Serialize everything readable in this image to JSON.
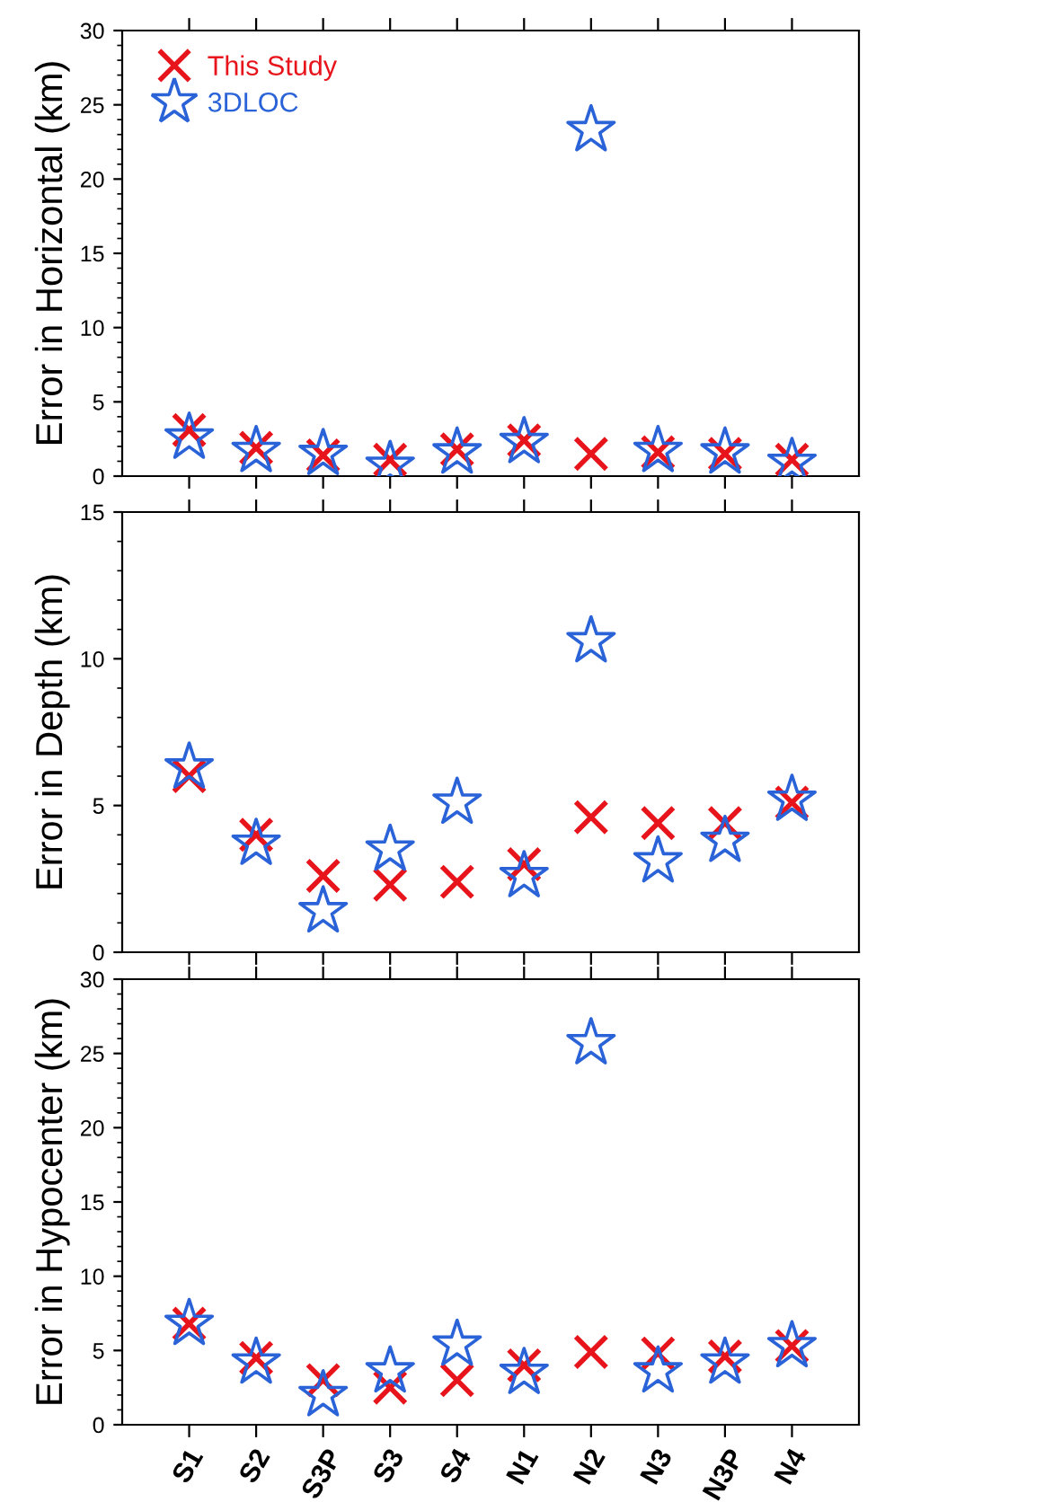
{
  "chart_data": [
    {
      "type": "scatter",
      "ylabel": "Error in Horizontal (km)",
      "categories": [
        null,
        null,
        null,
        null,
        null,
        null,
        null,
        null,
        null,
        null
      ],
      "ylim": [
        0,
        30
      ],
      "yticks": [
        0,
        5,
        10,
        15,
        20,
        25,
        30
      ],
      "tick_labels": "y",
      "legend": "top left",
      "grid": false,
      "series": [
        {
          "name": "This Study",
          "color": "#e8141c",
          "marker": "cross",
          "values": [
            3.1,
            1.9,
            1.4,
            1.1,
            1.8,
            2.4,
            1.5,
            1.6,
            1.5,
            1.1
          ]
        },
        {
          "name": "3DLOC",
          "color": "#2a62d8",
          "marker": "star",
          "values": [
            2.6,
            1.7,
            1.5,
            0.7,
            1.6,
            2.3,
            23.3,
            1.7,
            1.6,
            0.9
          ]
        }
      ]
    },
    {
      "type": "scatter",
      "ylabel": "Error in Depth (km)",
      "categories": [
        null,
        null,
        null,
        null,
        null,
        null,
        null,
        null,
        null,
        null
      ],
      "ylim": [
        0,
        15
      ],
      "yticks": [
        0,
        5,
        10,
        15
      ],
      "tick_labels": "y",
      "grid": false,
      "series": [
        {
          "color": "#e8141c",
          "marker": "cross",
          "values": [
            6.0,
            4.0,
            2.6,
            2.3,
            2.4,
            3.0,
            4.6,
            4.4,
            4.4,
            5.1
          ]
        },
        {
          "color": "#2a62d8",
          "marker": "star",
          "values": [
            6.3,
            3.7,
            1.4,
            3.5,
            5.1,
            2.6,
            10.6,
            3.1,
            3.8,
            5.2
          ]
        }
      ]
    },
    {
      "type": "scatter",
      "ylabel": "Error in Hypocenter (km)",
      "categories": [
        "S1",
        "S2",
        "S3P",
        "S3",
        "S4",
        "N1",
        "N2",
        "N3",
        "N3P",
        "N4"
      ],
      "ylim": [
        0,
        30
      ],
      "yticks": [
        0,
        5,
        10,
        15,
        20,
        25,
        30
      ],
      "grid": false,
      "series": [
        {
          "color": "#e8141c",
          "marker": "cross",
          "values": [
            6.8,
            4.5,
            3.0,
            2.5,
            3.0,
            4.0,
            4.9,
            4.8,
            4.6,
            5.3
          ]
        },
        {
          "color": "#2a62d8",
          "marker": "star",
          "values": [
            6.8,
            4.2,
            2.0,
            3.6,
            5.4,
            3.5,
            25.7,
            3.6,
            4.2,
            5.3
          ]
        }
      ]
    }
  ]
}
